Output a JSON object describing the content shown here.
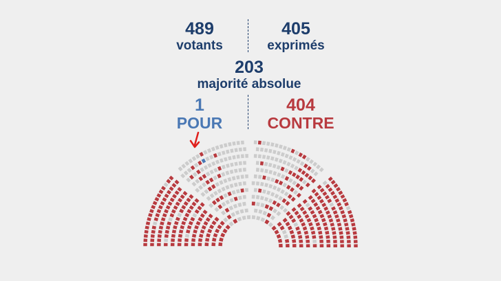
{
  "stats": {
    "votants": {
      "value": "489",
      "label": "votants"
    },
    "exprimes": {
      "value": "405",
      "label": "exprimés"
    },
    "majorite": {
      "value": "203",
      "label": "majorité absolue"
    },
    "pour": {
      "value": "1",
      "label": "POUR"
    },
    "contre": {
      "value": "404",
      "label": "CONTRE"
    }
  },
  "colors": {
    "text_dark": "#1d3d6b",
    "pour": "#4a78b4",
    "contre": "#b83a3f",
    "empty_seat": "#cccccc",
    "arrow": "#e0201c",
    "background": "#efefef"
  },
  "hemicycle": {
    "pour_seats": 1,
    "contre_seats": 404
  }
}
